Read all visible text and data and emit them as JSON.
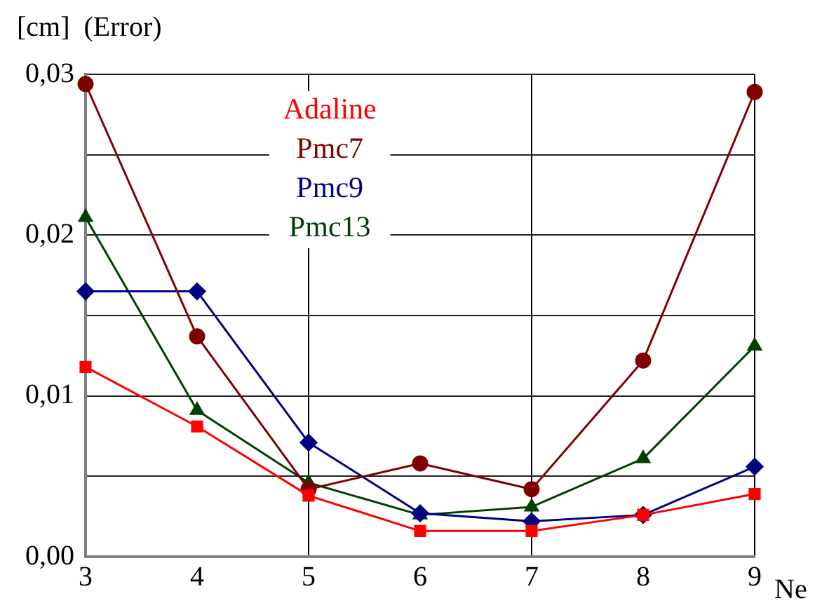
{
  "chart_data": {
    "type": "line",
    "ylabel": "[cm]  (Error)",
    "xlabel": "Ne",
    "x": [
      3,
      4,
      5,
      6,
      7,
      8,
      9
    ],
    "xlim": [
      3,
      9
    ],
    "xticks": [
      3,
      4,
      5,
      6,
      7,
      8,
      9
    ],
    "ylim": [
      0,
      0.03
    ],
    "yticks": [
      {
        "value": 0,
        "label": "0,00"
      },
      {
        "value": 0.005,
        "label": null
      },
      {
        "value": 0.01,
        "label": "0,01"
      },
      {
        "value": 0.015,
        "label": null
      },
      {
        "value": 0.02,
        "label": "0,02"
      },
      {
        "value": 0.025,
        "label": null
      },
      {
        "value": 0.03,
        "label": "0,03"
      }
    ],
    "grid": true,
    "legend": "top",
    "line_style": "solid",
    "series": [
      {
        "name": "Adaline",
        "color": "#ff0000",
        "marker": "square",
        "values": [
          0.0118,
          0.0081,
          0.0038,
          0.0016,
          0.0016,
          0.0026,
          0.0039
        ]
      },
      {
        "name": "Pmc7",
        "color": "#800000",
        "marker": "circle",
        "values": [
          0.0294,
          0.0137,
          0.0042,
          0.0058,
          0.0042,
          0.0122,
          0.0289
        ]
      },
      {
        "name": "Pmc9",
        "color": "#000080",
        "marker": "diamond",
        "values": [
          0.0165,
          0.0165,
          0.0071,
          0.0027,
          0.0022,
          0.0026,
          0.0056
        ]
      },
      {
        "name": "Pmc13",
        "color": "#004000",
        "marker": "triangle",
        "values": [
          0.0211,
          0.0091,
          0.0046,
          0.0026,
          0.0031,
          0.0061,
          0.0131
        ]
      }
    ]
  }
}
